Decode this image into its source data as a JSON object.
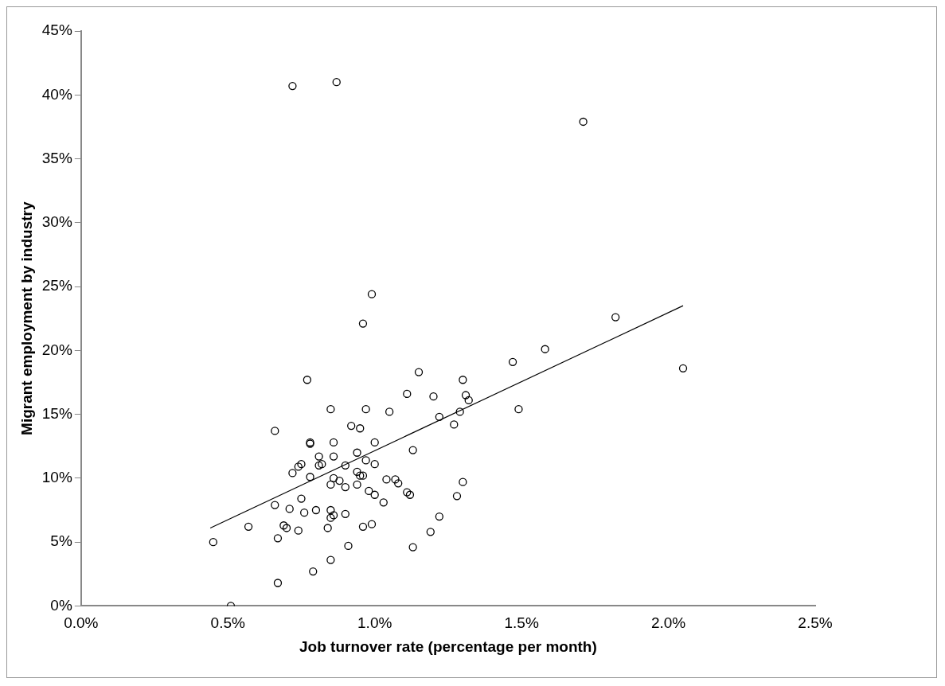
{
  "chart_data": {
    "type": "scatter",
    "xlabel": "Job turnover rate (percentage per month)",
    "ylabel": "Migrant employment by industry",
    "xlim": [
      0,
      2.5
    ],
    "xticks": [
      {
        "value": 0,
        "label": "0.0%"
      },
      {
        "value": 0.5,
        "label": "0.5%"
      },
      {
        "value": 1,
        "label": "1.0%"
      },
      {
        "value": 1.5,
        "label": "1.5%"
      },
      {
        "value": 2,
        "label": "2.0%"
      },
      {
        "value": 2.5,
        "label": "2.5%"
      }
    ],
    "ylim": [
      0,
      45
    ],
    "yticks": [
      {
        "value": 0,
        "label": "0%"
      },
      {
        "value": 5,
        "label": "5%"
      },
      {
        "value": 10,
        "label": "10%"
      },
      {
        "value": 15,
        "label": "15%"
      },
      {
        "value": 20,
        "label": "20%"
      },
      {
        "value": 25,
        "label": "25%"
      },
      {
        "value": 30,
        "label": "30%"
      },
      {
        "value": 35,
        "label": "35%"
      },
      {
        "value": 40,
        "label": "40%"
      },
      {
        "value": 45,
        "label": "45%"
      }
    ],
    "grid": false,
    "legend": false,
    "marker": "circle",
    "series": [
      {
        "color": "#000000",
        "x": [
          0.45,
          0.51,
          0.57,
          0.66,
          0.66,
          0.67,
          0.67,
          0.69,
          0.7,
          0.71,
          0.72,
          0.72,
          0.74,
          0.74,
          0.75,
          0.75,
          0.76,
          0.77,
          0.78,
          0.78,
          0.78,
          0.79,
          0.8,
          0.81,
          0.81,
          0.82,
          0.84,
          0.85,
          0.85,
          0.85,
          0.85,
          0.85,
          0.86,
          0.86,
          0.86,
          0.86,
          0.87,
          0.88,
          0.9,
          0.9,
          0.9,
          0.91,
          0.92,
          0.94,
          0.94,
          0.94,
          0.95,
          0.95,
          0.96,
          0.96,
          0.96,
          0.97,
          0.97,
          0.98,
          0.99,
          0.99,
          1.0,
          1.0,
          1.0,
          1.03,
          1.04,
          1.05,
          1.07,
          1.08,
          1.11,
          1.11,
          1.12,
          1.13,
          1.13,
          1.15,
          1.19,
          1.2,
          1.22,
          1.22,
          1.27,
          1.28,
          1.29,
          1.3,
          1.3,
          1.31,
          1.32,
          1.47,
          1.49,
          1.58,
          1.71,
          1.82,
          2.05
        ],
        "values": [
          5.0,
          0.0,
          6.2,
          13.7,
          7.9,
          1.8,
          5.3,
          6.3,
          6.1,
          7.6,
          10.4,
          40.7,
          5.9,
          10.9,
          11.1,
          8.4,
          7.3,
          17.7,
          12.8,
          12.7,
          10.1,
          2.7,
          7.5,
          11.0,
          11.7,
          11.1,
          6.1,
          15.4,
          3.6,
          9.5,
          6.9,
          7.5,
          7.1,
          11.7,
          10.0,
          12.8,
          41.0,
          9.8,
          9.3,
          11.0,
          7.2,
          4.7,
          14.1,
          12.0,
          10.5,
          9.5,
          13.9,
          10.2,
          10.2,
          6.2,
          22.1,
          15.4,
          11.4,
          9.0,
          24.4,
          6.4,
          8.7,
          12.8,
          11.1,
          8.1,
          9.9,
          15.2,
          9.9,
          9.6,
          16.6,
          8.9,
          8.7,
          12.2,
          4.6,
          18.3,
          5.8,
          16.4,
          14.8,
          7.0,
          14.2,
          8.6,
          15.2,
          17.7,
          9.7,
          16.5,
          16.1,
          19.1,
          15.4,
          20.1,
          37.9,
          22.6,
          18.6
        ]
      },
      {
        "type": "line",
        "color": "#000000",
        "marker": "none",
        "x": [
          0.44,
          2.05
        ],
        "values": [
          6.1,
          23.5
        ]
      }
    ]
  }
}
